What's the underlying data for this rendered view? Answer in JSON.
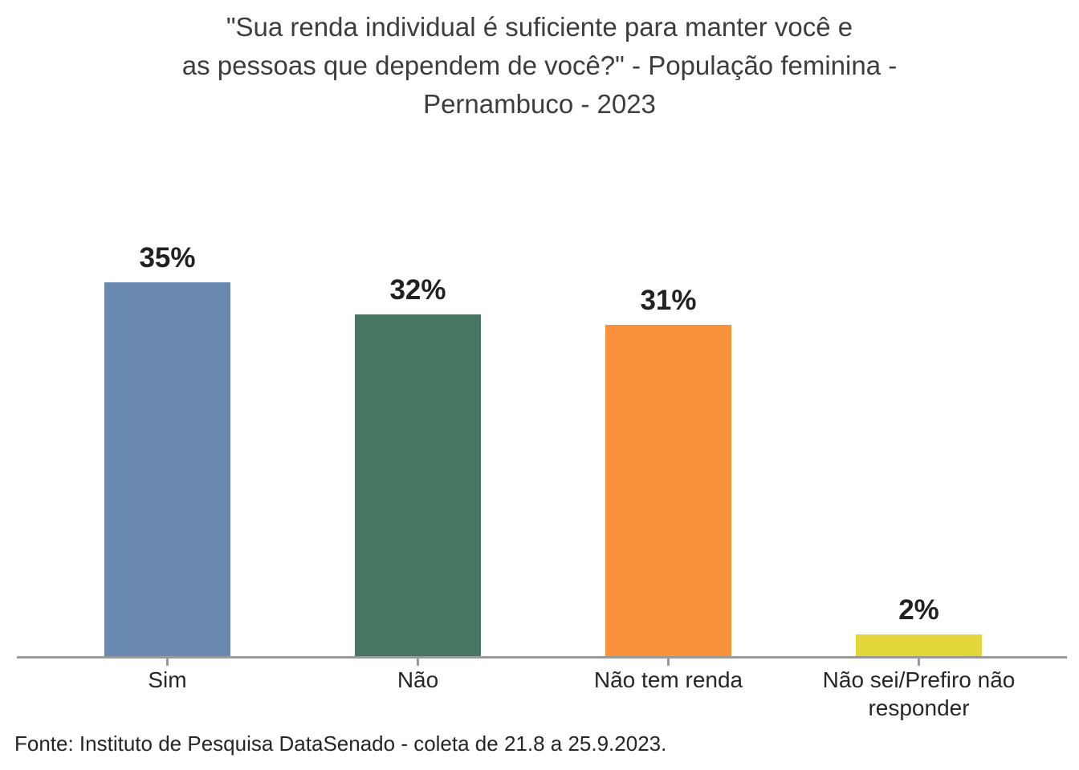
{
  "title_display": "\"Sua renda individual é suficiente para manter você e\nas pessoas que dependem de você?\" - População feminina -\nPernambuco - 2023",
  "chart_data": {
    "type": "bar",
    "title": "\"Sua renda individual é suficiente para manter você e as pessoas que dependem de você?\" - População feminina - Pernambuco - 2023",
    "categories": [
      "Sim",
      "Não",
      "Não tem renda",
      "Não sei/Prefiro não responder"
    ],
    "values": [
      35,
      32,
      31,
      2
    ],
    "value_labels": [
      "35%",
      "32%",
      "31%",
      "2%"
    ],
    "bar_colors": [
      "#6989b0",
      "#477663",
      "#f8923c",
      "#e2d63a"
    ],
    "axis_color": "#9a9a9a",
    "xlabel": "",
    "ylabel": "",
    "ylim": [
      0,
      38
    ],
    "grid": false,
    "legend": false,
    "source": "Fonte: Instituto de Pesquisa DataSenado - coleta de 21.8 a 25.9.2023."
  }
}
